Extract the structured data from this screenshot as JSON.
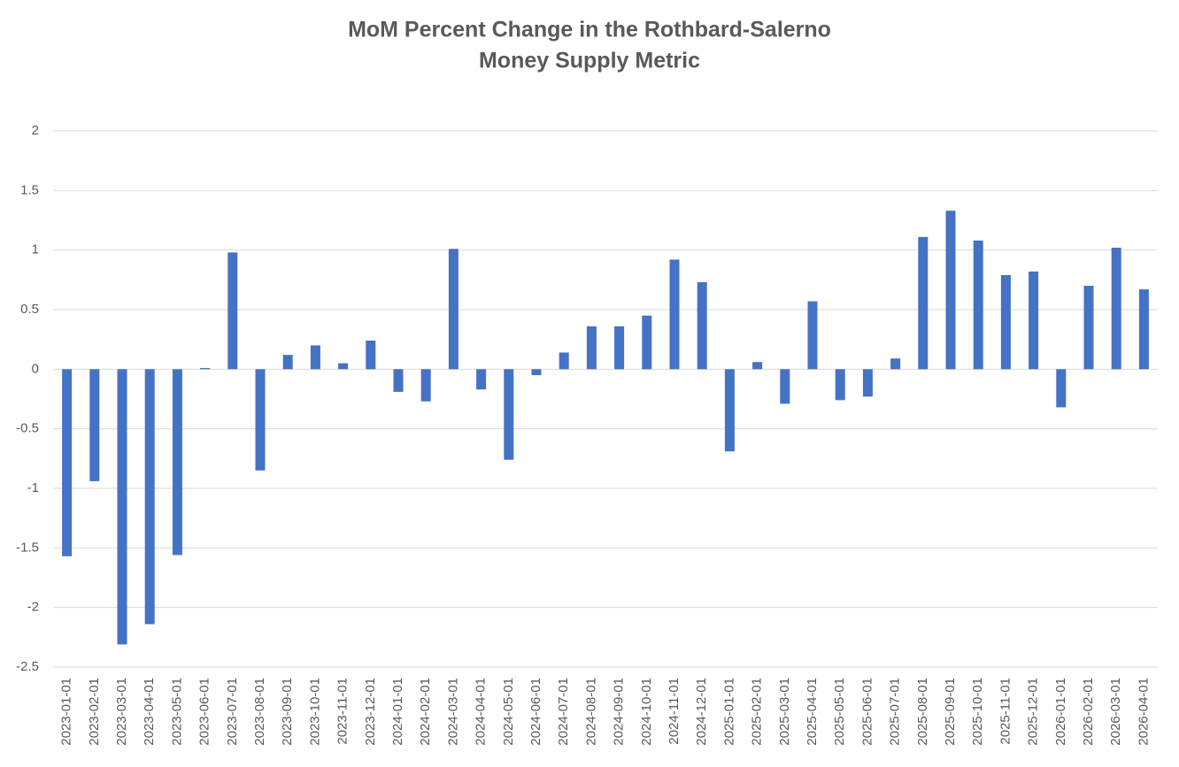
{
  "chart_data": {
    "type": "bar",
    "title": [
      "MoM Percent Change in the Rothbard-Salerno",
      "Money Supply Metric"
    ],
    "categories": [
      "2023-01-01",
      "2023-02-01",
      "2023-03-01",
      "2023-04-01",
      "2023-05-01",
      "2023-06-01",
      "2023-07-01",
      "2023-08-01",
      "2023-09-01",
      "2023-10-01",
      "2023-11-01",
      "2023-12-01",
      "2024-01-01",
      "2024-02-01",
      "2024-03-01",
      "2024-04-01",
      "2024-05-01",
      "2024-06-01",
      "2024-07-01",
      "2024-08-01",
      "2024-09-01",
      "2024-10-01",
      "2024-11-01",
      "2024-12-01",
      "2025-01-01",
      "2025-02-01",
      "2025-03-01",
      "2025-04-01",
      "2025-05-01",
      "2025-06-01",
      "2025-07-01",
      "2025-08-01",
      "2025-09-01",
      "2025-10-01",
      "2025-11-01",
      "2025-12-01",
      "2026-01-01",
      "2026-02-01",
      "2026-03-01",
      "2026-04-01"
    ],
    "values": [
      -1.57,
      -0.94,
      -2.31,
      -2.14,
      -1.56,
      0.01,
      0.98,
      -0.85,
      0.12,
      0.2,
      0.05,
      0.24,
      -0.19,
      -0.27,
      1.01,
      -0.17,
      -0.76,
      -0.05,
      0.14,
      0.36,
      0.36,
      0.45,
      0.92,
      0.73,
      -0.69,
      0.06,
      -0.29,
      0.57,
      -0.26,
      -0.23,
      0.09,
      1.11,
      1.33,
      1.08,
      0.79,
      0.82,
      -0.32,
      0.7,
      1.02,
      0.67
    ],
    "color": "#4472c4",
    "ylim": [
      -2.5,
      2
    ],
    "yticks": [
      -2.5,
      -2,
      -1.5,
      -1,
      -0.5,
      0,
      0.5,
      1,
      1.5,
      2
    ],
    "grid": true
  }
}
